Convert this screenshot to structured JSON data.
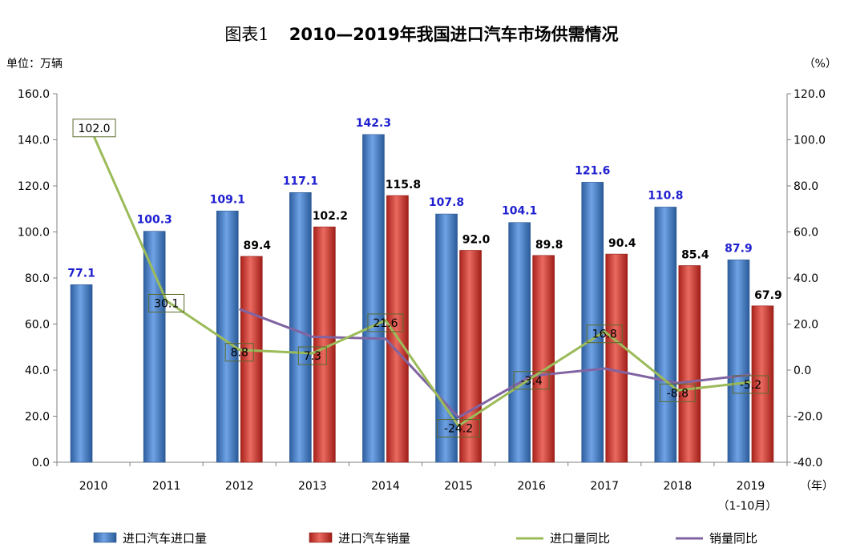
{
  "title_prefix": "图表1",
  "title_main": "2010—2019年我国进口汽车市场供需情况",
  "left_unit": "单位：万辆",
  "right_unit": "（%）",
  "x_unit": "（年）",
  "chart_data": {
    "type": "bar",
    "categories": [
      "2010",
      "2011",
      "2012",
      "2013",
      "2014",
      "2015",
      "2016",
      "2017",
      "2018",
      "2019"
    ],
    "category_sublabels": [
      "",
      "",
      "",
      "",
      "",
      "",
      "",
      "",
      "",
      "（1-10月）"
    ],
    "series": [
      {
        "name": "进口汽车进口量",
        "type": "bar",
        "axis": "left",
        "color": "#3a78c9",
        "values": [
          77.1,
          100.3,
          109.1,
          117.1,
          142.3,
          107.8,
          104.1,
          121.6,
          110.8,
          87.9
        ]
      },
      {
        "name": "进口汽车销量",
        "type": "bar",
        "axis": "left",
        "color": "#d0302a",
        "values": [
          null,
          null,
          89.4,
          102.2,
          115.8,
          92.0,
          89.8,
          90.4,
          85.4,
          67.9
        ]
      },
      {
        "name": "进口量同比",
        "type": "line",
        "axis": "right",
        "color": "#9bbb59",
        "values": [
          102.0,
          30.1,
          8.8,
          7.3,
          21.6,
          -24.2,
          -3.4,
          16.8,
          -8.8,
          -5.2
        ]
      },
      {
        "name": "销量同比",
        "type": "line",
        "axis": "right",
        "color": "#8064a2",
        "values": [
          null,
          null,
          26.5,
          14.5,
          13.6,
          -20.5,
          -2.5,
          0.7,
          -5.6,
          -2.0
        ]
      }
    ],
    "left_axis": {
      "min": 0,
      "max": 160,
      "step": 20,
      "tick_labels": [
        "0.0",
        "20.0",
        "40.0",
        "60.0",
        "80.0",
        "100.0",
        "120.0",
        "140.0",
        "160.0"
      ]
    },
    "right_axis": {
      "min": -40,
      "max": 120,
      "step": 20,
      "tick_labels": [
        "-40.0",
        "-20.0",
        "0.0",
        "20.0",
        "40.0",
        "60.0",
        "80.0",
        "100.0",
        "120.0"
      ]
    },
    "bar1_labels": [
      "77.1",
      "100.3",
      "109.1",
      "117.1",
      "142.3",
      "107.8",
      "104.1",
      "121.6",
      "110.8",
      "87.9"
    ],
    "bar2_labels": [
      "",
      "",
      "89.4",
      "102.2",
      "115.8",
      "92.0",
      "89.8",
      "90.4",
      "85.4",
      "67.9"
    ],
    "line1_labels": [
      "102.0",
      "30.1",
      "8.8",
      "7.3",
      "21.6",
      "-24.2",
      "-3.4",
      "16.8",
      "-8.8",
      "-5.2"
    ],
    "grid": false,
    "legend_position": "bottom"
  }
}
